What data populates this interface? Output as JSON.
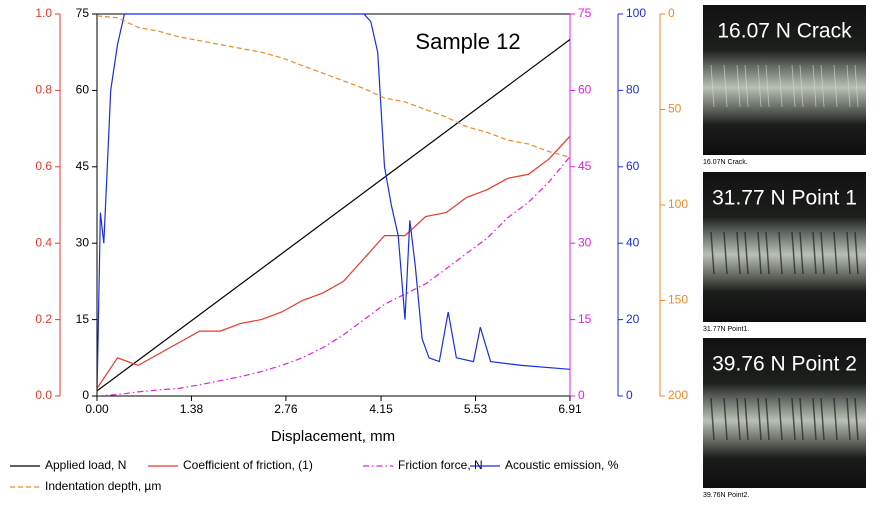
{
  "chart_data": {
    "type": "line",
    "annotation": "Sample 12",
    "x_label": "Displacement, mm",
    "xlim": [
      0,
      6.91
    ],
    "xticks": [
      {
        "value": 0,
        "label": "0.00"
      },
      1.38,
      2.76,
      4.15,
      5.53,
      6.91
    ],
    "y_axes": [
      {
        "side": "left",
        "color": "#e8382b",
        "lim": [
          0,
          1
        ],
        "ticks": [
          {
            "value": 0,
            "label": "0.0"
          },
          0.2,
          0.4,
          0.6,
          0.8,
          {
            "value": 1,
            "label": "1.0"
          }
        ]
      },
      {
        "side": "left",
        "color": "#000000",
        "lim": [
          0,
          75
        ],
        "ticks": [
          0,
          15,
          30,
          45,
          60,
          75
        ]
      },
      {
        "side": "right",
        "color": "#e020e0",
        "lim": [
          0,
          75
        ],
        "ticks": [
          0,
          15,
          30,
          45,
          60,
          75
        ]
      },
      {
        "side": "right",
        "color": "#1a2ee0",
        "lim": [
          0,
          100
        ],
        "ticks": [
          0,
          20,
          40,
          60,
          80,
          100
        ]
      },
      {
        "side": "right",
        "color": "#ee8a2a",
        "lim": [
          200,
          0
        ],
        "ticks": [
          0,
          50,
          100,
          150,
          200
        ]
      }
    ],
    "series": [
      {
        "name": "Applied load, N",
        "color": "#000000",
        "style": "solid",
        "axis": 1,
        "x": [
          0,
          6.91
        ],
        "values": [
          1,
          70
        ]
      },
      {
        "name": "Coefficient of friction, (1)",
        "color": "#e8382b",
        "style": "solid",
        "axis": 0,
        "x": [
          0,
          0.3,
          0.6,
          0.9,
          1.2,
          1.5,
          1.8,
          2.1,
          2.4,
          2.7,
          3.0,
          3.3,
          3.6,
          3.9,
          4.2,
          4.5,
          4.8,
          5.1,
          5.4,
          5.7,
          6.0,
          6.3,
          6.6,
          6.91
        ],
        "values": [
          0.02,
          0.1,
          0.08,
          0.11,
          0.14,
          0.17,
          0.17,
          0.19,
          0.2,
          0.22,
          0.25,
          0.27,
          0.3,
          0.36,
          0.42,
          0.42,
          0.47,
          0.48,
          0.52,
          0.54,
          0.57,
          0.58,
          0.62,
          0.68
        ]
      },
      {
        "name": "Friction force, N",
        "color": "#e020e0",
        "style": "dashdot",
        "axis": 2,
        "x": [
          0,
          0.3,
          0.6,
          0.9,
          1.2,
          1.5,
          1.8,
          2.1,
          2.4,
          2.7,
          3.0,
          3.3,
          3.6,
          3.9,
          4.2,
          4.5,
          4.8,
          5.1,
          5.4,
          5.7,
          6.0,
          6.3,
          6.6,
          6.91
        ],
        "values": [
          0,
          0.3,
          0.8,
          1.2,
          1.5,
          2.2,
          3,
          3.8,
          4.8,
          6,
          7.5,
          9.5,
          12,
          15,
          18,
          20,
          22,
          25,
          28,
          31,
          35,
          38,
          42,
          47
        ]
      },
      {
        "name": "Acoustic emission, %",
        "color": "#1a2ee0",
        "style": "solid",
        "axis": 3,
        "x": [
          0,
          0.05,
          0.1,
          0.15,
          0.2,
          0.3,
          0.4,
          3.9,
          4.0,
          4.1,
          4.2,
          4.3,
          4.4,
          4.5,
          4.57,
          4.65,
          4.75,
          4.85,
          5.0,
          5.13,
          5.25,
          5.5,
          5.6,
          5.75,
          6.2,
          6.91
        ],
        "values": [
          0,
          48,
          40,
          60,
          80,
          92,
          100,
          100,
          98,
          90,
          60,
          50,
          42,
          20,
          46,
          34,
          15,
          10,
          9,
          22,
          10,
          9,
          18,
          9,
          8,
          7
        ]
      },
      {
        "name": "Indentation depth, µm",
        "color": "#ee8a2a",
        "style": "dashed",
        "axis": 4,
        "x": [
          0,
          0.3,
          0.6,
          0.9,
          1.2,
          1.5,
          1.8,
          2.1,
          2.4,
          2.7,
          3.0,
          3.3,
          3.6,
          3.9,
          4.2,
          4.5,
          4.8,
          5.1,
          5.4,
          5.7,
          6.0,
          6.3,
          6.6,
          6.91
        ],
        "values": [
          1,
          2,
          7,
          9,
          12,
          14,
          16,
          18,
          20,
          23,
          27,
          31,
          35,
          39,
          44,
          46,
          50,
          54,
          59,
          62,
          66,
          68,
          72,
          75
        ]
      }
    ]
  },
  "micrographs": [
    {
      "title": "16.07 N Crack",
      "caption": "16.07N Crack."
    },
    {
      "title": "31.77 N Point 1",
      "caption": "31.77N Point1."
    },
    {
      "title": "39.76 N Point 2",
      "caption": "39.76N Point2."
    }
  ]
}
